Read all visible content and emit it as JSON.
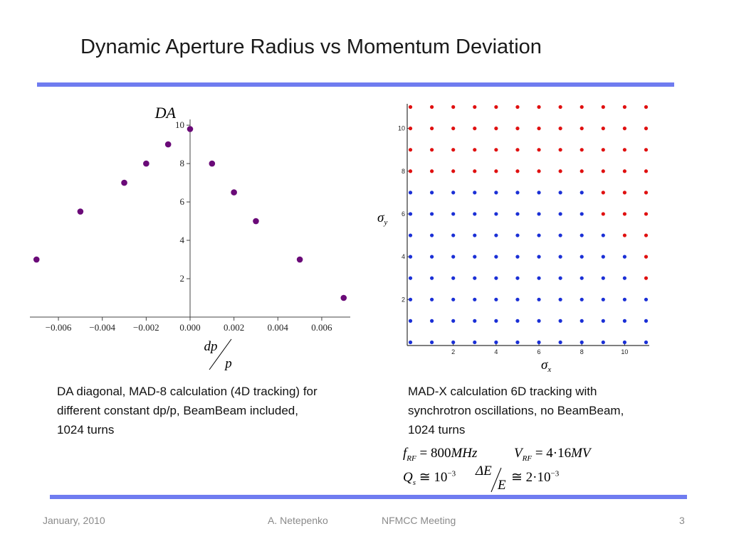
{
  "slide": {
    "title": "Dynamic Aperture Radius vs Momentum Deviation",
    "caption_left": "DA diagonal, MAD-8 calculation (4D tracking) for different constant dp/p, BeamBeam included, 1024 turns",
    "caption_right": "MAD-X calculation 6D tracking with synchrotron oscillations, no BeamBeam, 1024 turns",
    "footer": {
      "date": "January, 2010",
      "author": "A. Netepenko",
      "meeting": "NFMCC Meeting",
      "page": "3"
    },
    "formulas": {
      "f_sym": "f",
      "f_sub": "RF",
      "f_val": "= 800",
      "f_unit": "MHz",
      "v_sym": "V",
      "v_sub": "RF",
      "v_val": "= 4·16",
      "v_unit": "MV",
      "q_sym": "Q",
      "q_sub": "s",
      "q_val": "≅ 10",
      "q_exp": "−3",
      "de_num": "ΔE",
      "de_den": "E",
      "de_val": "≅ 2·10",
      "de_exp": "−3"
    }
  },
  "chart_data": [
    {
      "type": "scatter",
      "ylabel": "DA",
      "xlabel_num": "dp",
      "xlabel_den": "p",
      "xlim": [
        -0.0073,
        0.0073
      ],
      "ylim": [
        0,
        10.3
      ],
      "x_ticks": [
        -0.006,
        -0.004,
        -0.002,
        0.0,
        0.002,
        0.004,
        0.006
      ],
      "x_tick_labels": [
        "−0.006",
        "−0.004",
        "−0.002",
        "0.000",
        "0.002",
        "0.004",
        "0.006"
      ],
      "y_ticks": [
        2,
        4,
        6,
        8,
        10
      ],
      "y_tick_labels": [
        "2",
        "4",
        "6",
        "8",
        "10"
      ],
      "point_color": "#6a0a78",
      "points": [
        {
          "x": -0.007,
          "y": 3.0
        },
        {
          "x": -0.005,
          "y": 5.5
        },
        {
          "x": -0.003,
          "y": 7.0
        },
        {
          "x": -0.002,
          "y": 8.0
        },
        {
          "x": -0.001,
          "y": 9.0
        },
        {
          "x": 0.0,
          "y": 9.8
        },
        {
          "x": 0.001,
          "y": 8.0
        },
        {
          "x": 0.002,
          "y": 6.5
        },
        {
          "x": 0.003,
          "y": 5.0
        },
        {
          "x": 0.005,
          "y": 3.0
        },
        {
          "x": 0.007,
          "y": 1.0
        }
      ]
    },
    {
      "type": "scatter",
      "xlabel_sym": "σ",
      "xlabel_sub": "x",
      "ylabel_sym": "σ",
      "ylabel_sub": "y",
      "xlim": [
        -0.15,
        11.15
      ],
      "ylim": [
        -0.15,
        11.15
      ],
      "x_ticks": [
        2,
        4,
        6,
        8,
        10
      ],
      "x_tick_labels": [
        "2",
        "4",
        "6",
        "8",
        "10"
      ],
      "y_ticks": [
        2,
        4,
        6,
        8,
        10
      ],
      "y_tick_labels": [
        "2",
        "4",
        "6",
        "8",
        "10"
      ],
      "grid_x": [
        0,
        1,
        2,
        3,
        4,
        5,
        6,
        7,
        8,
        9,
        10,
        11
      ],
      "grid_y": [
        0,
        1,
        2,
        3,
        4,
        5,
        6,
        7,
        8,
        9,
        10,
        11
      ],
      "stable_color": "#1a2fd6",
      "lost_color": "#e01010",
      "stable_max_x_by_y": [
        11,
        11,
        11,
        10,
        10,
        9,
        8,
        8,
        -1,
        -1,
        -1,
        -1
      ],
      "legend": "none"
    }
  ]
}
